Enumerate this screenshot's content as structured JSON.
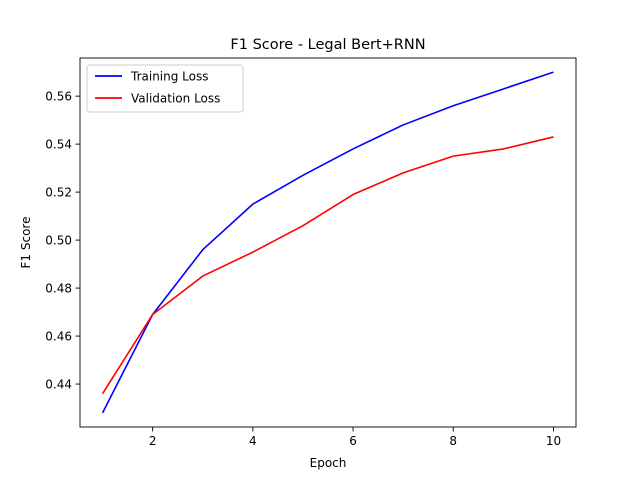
{
  "chart_data": {
    "type": "line",
    "title": "F1 Score - Legal Bert+RNN",
    "xlabel": "Epoch",
    "ylabel": "F1 Score",
    "x": [
      1,
      2,
      3,
      4,
      5,
      6,
      7,
      8,
      9,
      10
    ],
    "xlim": [
      0.55,
      10.45
    ],
    "ylim": [
      0.4221,
      0.5759
    ],
    "xticks": [
      2,
      4,
      6,
      8,
      10
    ],
    "yticks": [
      0.44,
      0.46,
      0.48,
      0.5,
      0.52,
      0.54,
      0.56
    ],
    "ytick_labels": [
      "0.44",
      "0.46",
      "0.48",
      "0.50",
      "0.52",
      "0.54",
      "0.56"
    ],
    "grid": false,
    "legend_position": "top-left",
    "series": [
      {
        "name": "Training Loss",
        "color": "#0000ff",
        "values": [
          0.428,
          0.469,
          0.496,
          0.515,
          0.527,
          0.538,
          0.548,
          0.556,
          0.563,
          0.57
        ]
      },
      {
        "name": "Validation Loss",
        "color": "#ff0000",
        "values": [
          0.436,
          0.469,
          0.485,
          0.495,
          0.506,
          0.519,
          0.528,
          0.535,
          0.538,
          0.543
        ]
      }
    ]
  }
}
